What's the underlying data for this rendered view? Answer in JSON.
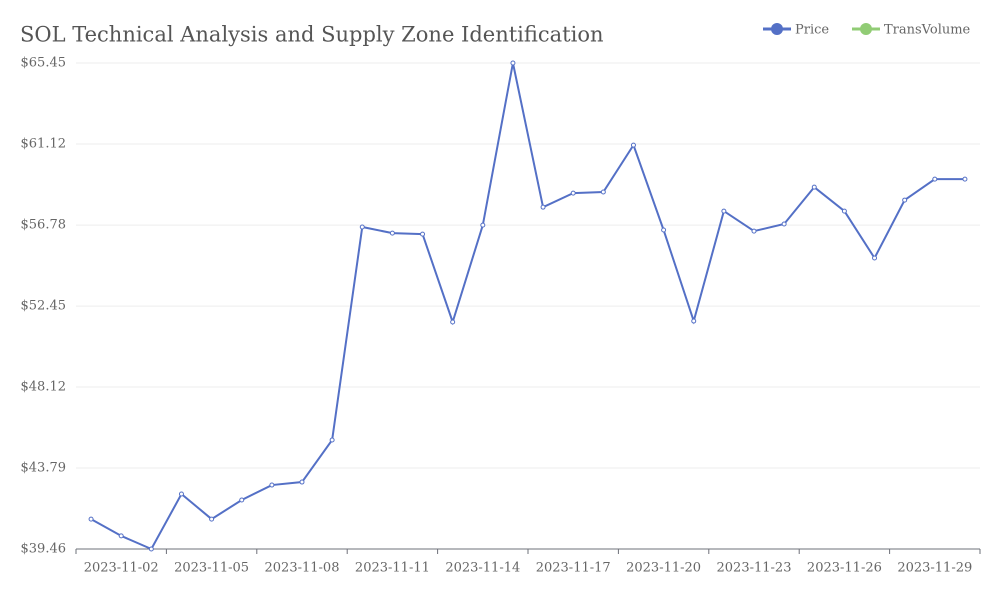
{
  "chart_data": {
    "type": "line",
    "title": "SOL Technical Analysis and Supply Zone Identification",
    "categories": [
      null,
      "2023-11-02",
      null,
      null,
      "2023-11-05",
      null,
      null,
      "2023-11-08",
      null,
      null,
      "2023-11-11",
      null,
      null,
      "2023-11-14",
      null,
      null,
      "2023-11-17",
      null,
      null,
      "2023-11-20",
      null,
      null,
      "2023-11-23",
      null,
      null,
      "2023-11-26",
      null,
      null,
      "2023-11-29",
      null
    ],
    "series": [
      {
        "name": "Price",
        "color": "#5470c6",
        "values": [
          41.06,
          40.16,
          39.46,
          42.4,
          41.06,
          42.08,
          42.88,
          43.04,
          45.29,
          56.68,
          56.35,
          56.3,
          51.6,
          56.78,
          65.45,
          57.74,
          58.49,
          58.55,
          61.06,
          56.52,
          51.65,
          57.53,
          56.46,
          56.84,
          58.81,
          57.53,
          55.02,
          58.12,
          59.24,
          59.24
        ]
      },
      {
        "name": "TransVolume",
        "color": "#91cc75",
        "values": [
          null,
          null,
          null,
          null,
          null,
          null,
          null,
          null,
          null,
          null,
          null,
          null,
          null,
          null,
          null,
          null,
          null,
          null,
          null,
          null,
          null,
          null,
          null,
          null,
          null,
          null,
          null,
          null,
          null,
          null
        ]
      }
    ],
    "ylim": [
      39.46,
      65.45
    ],
    "yticks": [
      {
        "value": 39.46,
        "label": "$39.46"
      },
      {
        "value": 43.79,
        "label": "$43.79"
      },
      {
        "value": 48.12,
        "label": "$48.12"
      },
      {
        "value": 52.45,
        "label": "$52.45"
      },
      {
        "value": 56.78,
        "label": "$56.78"
      },
      {
        "value": 61.12,
        "label": "$61.12"
      },
      {
        "value": 65.45,
        "label": "$65.45"
      }
    ],
    "grid": true,
    "legend": "top-right"
  }
}
